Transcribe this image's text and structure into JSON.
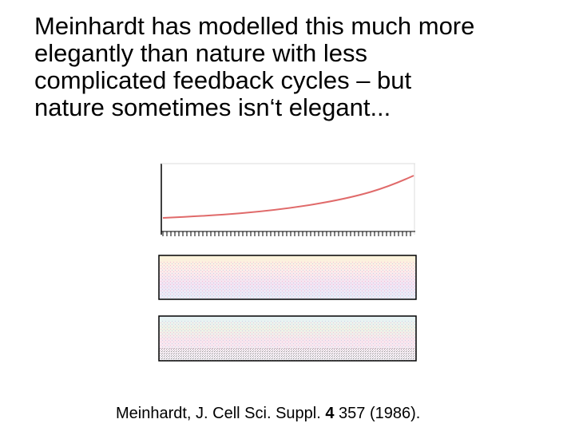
{
  "slide": {
    "body_lines": [
      "Meinhardt has modelled this much more",
      "elegantly than nature with less",
      "complicated feedback cycles – but",
      "nature sometimes isn‘t elegant..."
    ]
  },
  "figure": {
    "curve_color": "#e06a6a",
    "curve_description": "monotonic increasing line, rising faster toward the right"
  },
  "citation": {
    "authors": "Meinhardt, J. Cell Sci. Suppl.",
    "volume": "4",
    "pages_year": "357 (1986)."
  }
}
